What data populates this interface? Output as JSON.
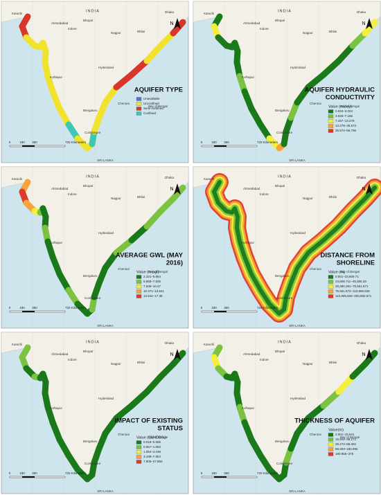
{
  "map": {
    "north": "N",
    "places": [
      "INDIA",
      "Karachi",
      "Ahmedabad",
      "Bhopal",
      "Indore",
      "Nagpur",
      "Bhilai",
      "Hyderabad",
      "Kolhapur",
      "Bengaluru",
      "Chennai",
      "Coimbatore",
      "Bay of Bengal",
      "SRI LANKA",
      "Dhaka"
    ],
    "scale": [
      "0",
      "180",
      "360",
      "720 Kilometers"
    ],
    "panels": [
      {
        "title": [
          "AQUIFER TYPE"
        ],
        "legend_title": null,
        "items": [
          {
            "label": "Unavailable",
            "color": "#5b6fd6"
          },
          {
            "label": "Unconfined",
            "color": "#f1e22c"
          },
          {
            "label": "Semi-confined",
            "color": "#d9362b"
          },
          {
            "label": "Confined",
            "color": "#3cc8b4"
          }
        ]
      },
      {
        "title": [
          "AQUIFER HYDRAULIC",
          "CONDUCTIVITY"
        ],
        "legend_title": "Value (m/day)",
        "items": [
          {
            "label": "0.034–3.024",
            "color": "#1a7a1a"
          },
          {
            "label": "3.025–7.166",
            "color": "#7cc242"
          },
          {
            "label": "7.167–13.278",
            "color": "#f4ee3c"
          },
          {
            "label": "13.279–35.573",
            "color": "#f6a43a"
          },
          {
            "label": "35.574–56.706",
            "color": "#e03a2a"
          }
        ]
      },
      {
        "title": [
          "AVERAGE GWL (MAY",
          "2016)"
        ],
        "legend_title": "Value (m bgl)",
        "items": [
          {
            "label": "2.321–5.864",
            "color": "#1a7a1a"
          },
          {
            "label": "5.865–7.635",
            "color": "#7cc242"
          },
          {
            "label": "7.636–10.47",
            "color": "#f4ee3c"
          },
          {
            "label": "10.471–13.541",
            "color": "#f6a43a"
          },
          {
            "label": "13.542–17.38",
            "color": "#e03a2a"
          }
        ]
      },
      {
        "title": [
          "DISTANCE FROM",
          "SHORELINE"
        ],
        "legend_title": "Value (m)",
        "items": [
          {
            "label": "0.001–23,609.71",
            "color": "#1a7a1a"
          },
          {
            "label": "23,609.711–49,380.39",
            "color": "#7cc242"
          },
          {
            "label": "49,380.391–75,551.671",
            "color": "#f4ee3c"
          },
          {
            "label": "75,551.672–110,965.635",
            "color": "#f6a43a"
          },
          {
            "label": "110,965.636–200,892.571",
            "color": "#e03a2a"
          }
        ]
      },
      {
        "title": [
          "IMPACT OF EXISTING",
          "STATUS"
        ],
        "legend_title": "Value (Cl/HCO3-)",
        "items": [
          {
            "label": "0.019–0.566",
            "color": "#1a7a1a"
          },
          {
            "label": "0.567–1.053",
            "color": "#7cc242"
          },
          {
            "label": "1.054–3.198",
            "color": "#f4ee3c"
          },
          {
            "label": "3.199–7.804",
            "color": "#f6a43a"
          },
          {
            "label": "7.805–27.983",
            "color": "#e03a2a"
          }
        ]
      },
      {
        "title": [
          "THICKNESS OF AQUIFER"
        ],
        "legend_title": "Value(m)",
        "items": [
          {
            "label": "2.001–15.941",
            "color": "#1a7a1a"
          },
          {
            "label": "15.942–38.271",
            "color": "#7cc242"
          },
          {
            "label": "38.272–88.302",
            "color": "#f4ee3c"
          },
          {
            "label": "88.303–180.955",
            "color": "#f6a43a"
          },
          {
            "label": "180.956–375",
            "color": "#e03a2a"
          }
        ]
      }
    ]
  }
}
